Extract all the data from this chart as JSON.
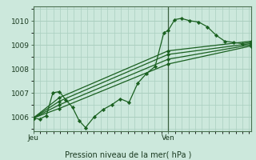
{
  "title": "Pression niveau de la mer( hPa )",
  "bg_color": "#cce8dc",
  "grid_color": "#aacfc0",
  "line_color": "#1a6020",
  "marker_color": "#1a6020",
  "ymin": 1005.4,
  "ymax": 1010.6,
  "yticks": [
    1006,
    1007,
    1008,
    1009,
    1010
  ],
  "xtick_labels": [
    "Jeu",
    "Ven"
  ],
  "xtick_pos": [
    0.0,
    0.62
  ],
  "vline_pos": 0.62,
  "series": [
    {
      "x": [
        0.0,
        0.03,
        0.06,
        0.09,
        0.12,
        0.15,
        0.18,
        0.21,
        0.24,
        0.28,
        0.32,
        0.36,
        0.4,
        0.44,
        0.48,
        0.52,
        0.56,
        0.6,
        0.62,
        0.65,
        0.68,
        0.72,
        0.76,
        0.8,
        0.84,
        0.88,
        0.92,
        0.96,
        1.0
      ],
      "y": [
        1005.95,
        1005.9,
        1006.05,
        1007.0,
        1007.05,
        1006.7,
        1006.4,
        1005.85,
        1005.55,
        1006.0,
        1006.3,
        1006.5,
        1006.75,
        1006.6,
        1007.4,
        1007.8,
        1008.1,
        1009.5,
        1009.6,
        1010.05,
        1010.1,
        1010.0,
        1009.95,
        1009.75,
        1009.4,
        1009.15,
        1009.1,
        1009.05,
        1009.1
      ]
    },
    {
      "x": [
        0.0,
        0.12,
        0.62,
        1.0
      ],
      "y": [
        1005.95,
        1006.35,
        1008.2,
        1008.95
      ]
    },
    {
      "x": [
        0.0,
        0.12,
        0.62,
        1.0
      ],
      "y": [
        1005.95,
        1006.5,
        1008.4,
        1009.0
      ]
    },
    {
      "x": [
        0.0,
        0.12,
        0.62,
        1.0
      ],
      "y": [
        1005.95,
        1006.65,
        1008.6,
        1009.05
      ]
    },
    {
      "x": [
        0.0,
        0.12,
        0.62,
        1.0
      ],
      "y": [
        1005.95,
        1006.8,
        1008.75,
        1009.15
      ]
    }
  ]
}
